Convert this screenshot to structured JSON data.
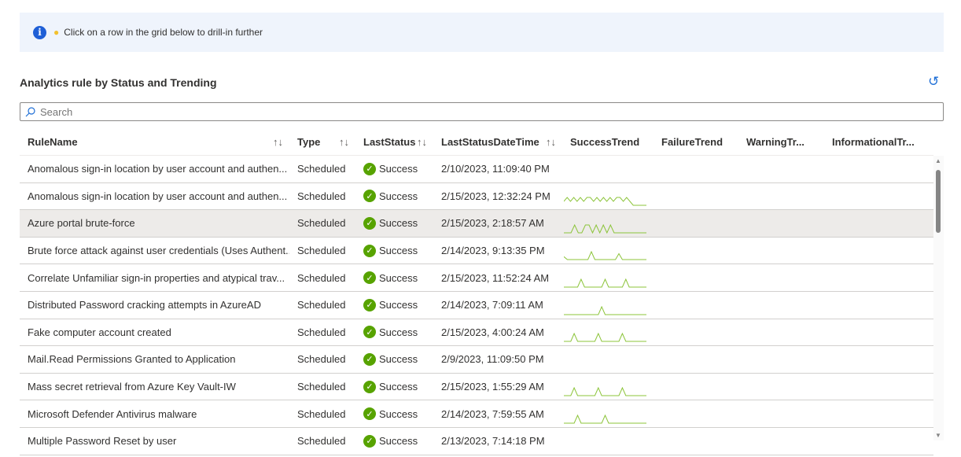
{
  "banner": {
    "icon": "info-icon",
    "bulb_icon": "lightbulb-icon",
    "text": "Click on a row in the grid below to drill-in further"
  },
  "title": "Analytics rule by Status and Trending",
  "search": {
    "placeholder": "Search",
    "value": ""
  },
  "colors": {
    "success": "#57a300",
    "sparkline": "#8cc43a",
    "selected_row": "#edebe9",
    "accent": "#1f6fd6"
  },
  "columns": [
    "RuleName",
    "Type",
    "LastStatus",
    "LastStatusDateTime",
    "SuccessTrend",
    "FailureTrend",
    "WarningTr...",
    "InformationalTr..."
  ],
  "sortable": [
    true,
    true,
    true,
    true,
    false,
    false,
    false,
    false
  ],
  "selected_row": 2,
  "rows": [
    {
      "name": "Anomalous sign-in location by user account and authen...",
      "type": "Scheduled",
      "status": "Success",
      "time": "2/10/2023, 11:09:40 PM",
      "trend": []
    },
    {
      "name": "Anomalous sign-in location by user account and authen...",
      "type": "Scheduled",
      "status": "Success",
      "time": "2/15/2023, 12:32:24 PM",
      "trend": [
        1,
        2,
        1,
        2,
        1,
        2,
        1,
        2,
        2,
        1,
        2,
        1,
        2,
        1,
        2,
        1,
        2,
        2,
        1,
        2,
        1,
        0,
        0,
        0,
        0,
        0
      ]
    },
    {
      "name": "Azure portal brute-force",
      "type": "Scheduled",
      "status": "Success",
      "time": "2/15/2023, 2:18:57 AM",
      "trend": [
        0,
        0,
        0,
        1,
        0,
        0,
        1,
        1,
        0,
        1,
        0,
        1,
        0,
        1,
        0,
        0,
        0,
        0,
        0,
        0,
        0,
        0,
        0,
        0
      ]
    },
    {
      "name": "Brute force attack against user credentials (Uses Authent...",
      "type": "Scheduled",
      "status": "Success",
      "time": "2/14/2023, 9:13:35 PM",
      "trend": [
        3,
        0,
        0,
        0,
        0,
        0,
        0,
        0,
        8,
        0,
        0,
        0,
        0,
        0,
        0,
        0,
        6,
        0,
        0,
        0,
        0,
        0,
        0,
        0,
        0
      ]
    },
    {
      "name": "Correlate Unfamiliar sign-in properties and atypical trav...",
      "type": "Scheduled",
      "status": "Success",
      "time": "2/15/2023, 11:52:24 AM",
      "trend": [
        0,
        0,
        0,
        0,
        0,
        2,
        0,
        0,
        0,
        0,
        0,
        0,
        2,
        0,
        0,
        0,
        0,
        0,
        2,
        0,
        0,
        0,
        0,
        0,
        0
      ]
    },
    {
      "name": "Distributed Password cracking attempts in AzureAD",
      "type": "Scheduled",
      "status": "Success",
      "time": "2/14/2023, 7:09:11 AM",
      "trend": [
        0,
        0,
        0,
        0,
        0,
        0,
        0,
        0,
        0,
        0,
        0,
        2,
        0,
        0,
        0,
        0,
        0,
        0,
        0,
        0,
        0,
        0,
        0,
        0,
        0
      ]
    },
    {
      "name": "Fake computer account created",
      "type": "Scheduled",
      "status": "Success",
      "time": "2/15/2023, 4:00:24 AM",
      "trend": [
        0,
        0,
        0,
        2,
        0,
        0,
        0,
        0,
        0,
        0,
        2,
        0,
        0,
        0,
        0,
        0,
        0,
        2,
        0,
        0,
        0,
        0,
        0,
        0,
        0
      ]
    },
    {
      "name": "Mail.Read Permissions Granted to Application",
      "type": "Scheduled",
      "status": "Success",
      "time": "2/9/2023, 11:09:50 PM",
      "trend": []
    },
    {
      "name": "Mass secret retrieval from Azure Key Vault-IW",
      "type": "Scheduled",
      "status": "Success",
      "time": "2/15/2023, 1:55:29 AM",
      "trend": [
        0,
        0,
        0,
        2,
        0,
        0,
        0,
        0,
        0,
        0,
        2,
        0,
        0,
        0,
        0,
        0,
        0,
        2,
        0,
        0,
        0,
        0,
        0,
        0,
        0
      ]
    },
    {
      "name": "Microsoft Defender Antivirus malware",
      "type": "Scheduled",
      "status": "Success",
      "time": "2/14/2023, 7:59:55 AM",
      "trend": [
        0,
        0,
        0,
        0,
        2,
        0,
        0,
        0,
        0,
        0,
        0,
        0,
        2,
        0,
        0,
        0,
        0,
        0,
        0,
        0,
        0,
        0,
        0,
        0,
        0
      ]
    },
    {
      "name": "Multiple Password Reset by user",
      "type": "Scheduled",
      "status": "Success",
      "time": "2/13/2023, 7:14:18 PM",
      "trend": []
    }
  ]
}
